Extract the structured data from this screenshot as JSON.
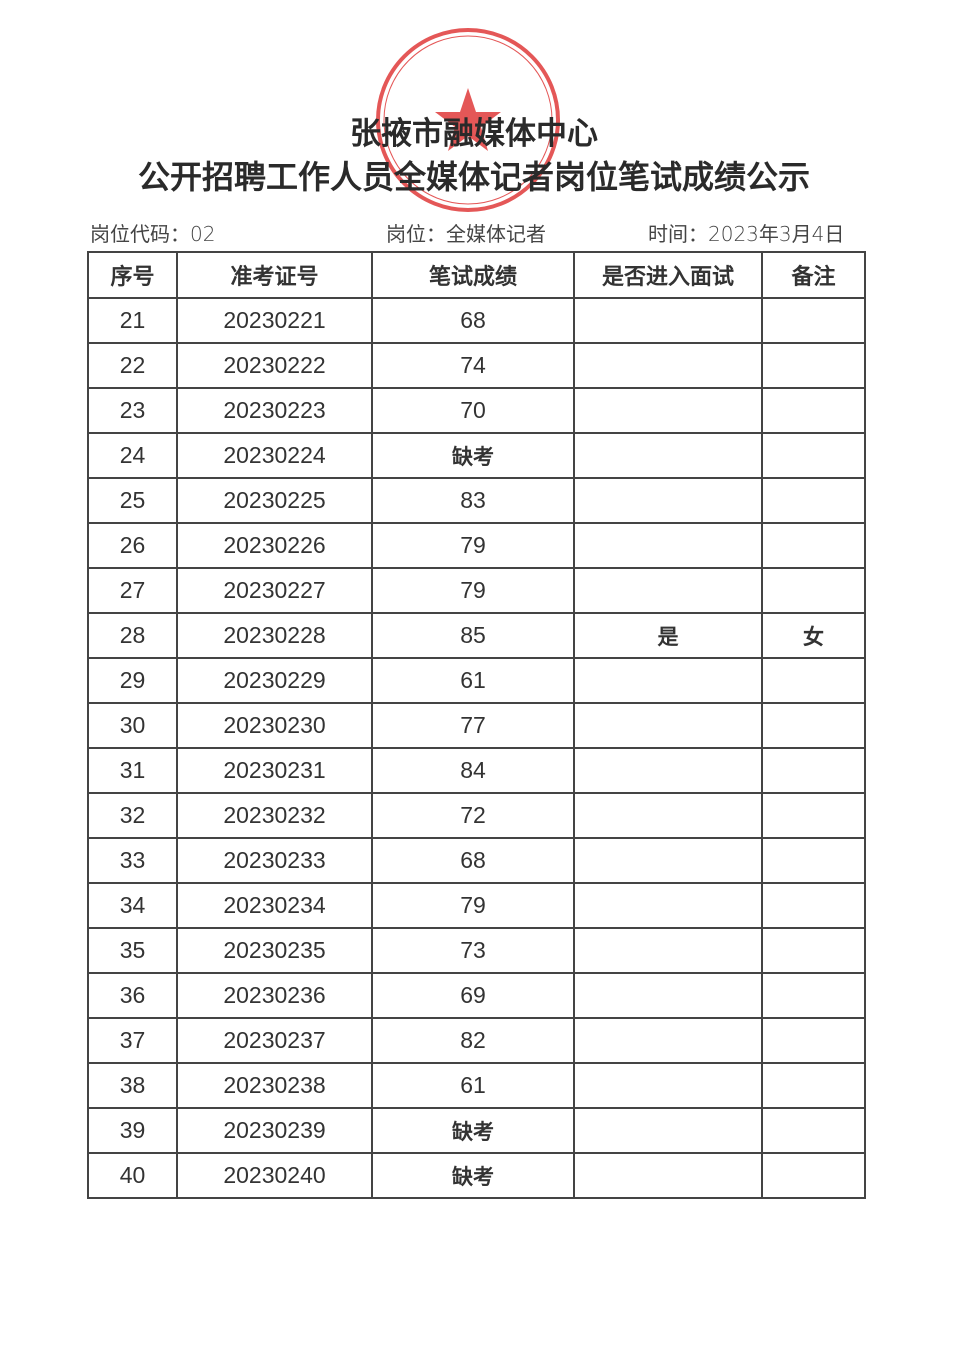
{
  "title_line1": "张掖市融媒体中心",
  "title_line2": "公开招聘工作人员全媒体记者岗位笔试成绩公示",
  "meta": {
    "position_code": "岗位代码：02",
    "position": "岗位：全媒体记者",
    "date": "时间：2023年3月4日"
  },
  "stamp": {
    "text": "张掖市融媒体中心",
    "color": "#e03a3a"
  },
  "table": {
    "headers": [
      "序号",
      "准考证号",
      "笔试成绩",
      "是否进入面试",
      "备注"
    ],
    "rows": [
      [
        "21",
        "20230221",
        "68",
        "",
        ""
      ],
      [
        "22",
        "20230222",
        "74",
        "",
        ""
      ],
      [
        "23",
        "20230223",
        "70",
        "",
        ""
      ],
      [
        "24",
        "20230224",
        "缺考",
        "",
        ""
      ],
      [
        "25",
        "20230225",
        "83",
        "",
        ""
      ],
      [
        "26",
        "20230226",
        "79",
        "",
        ""
      ],
      [
        "27",
        "20230227",
        "79",
        "",
        ""
      ],
      [
        "28",
        "20230228",
        "85",
        "是",
        "女"
      ],
      [
        "29",
        "20230229",
        "61",
        "",
        ""
      ],
      [
        "30",
        "20230230",
        "77",
        "",
        ""
      ],
      [
        "31",
        "20230231",
        "84",
        "",
        ""
      ],
      [
        "32",
        "20230232",
        "72",
        "",
        ""
      ],
      [
        "33",
        "20230233",
        "68",
        "",
        ""
      ],
      [
        "34",
        "20230234",
        "79",
        "",
        ""
      ],
      [
        "35",
        "20230235",
        "73",
        "",
        ""
      ],
      [
        "36",
        "20230236",
        "69",
        "",
        ""
      ],
      [
        "37",
        "20230237",
        "82",
        "",
        ""
      ],
      [
        "38",
        "20230238",
        "61",
        "",
        ""
      ],
      [
        "39",
        "20230239",
        "缺考",
        "",
        ""
      ],
      [
        "40",
        "20230240",
        "缺考",
        "",
        ""
      ]
    ]
  }
}
